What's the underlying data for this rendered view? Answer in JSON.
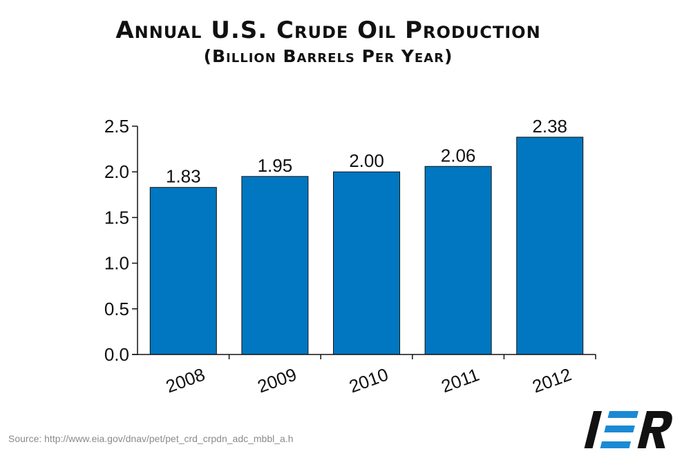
{
  "title": "Annual U.S. Crude Oil Production",
  "subtitle": "(Billion Barrels Per Year)",
  "source": "Source: http://www.eia.gov/dnav/pet/pet_crd_crpdn_adc_mbbl_a.h",
  "logo_text": "IER",
  "colors": {
    "bar": "#0077c0",
    "logo_blue": "#1a8ad4",
    "logo_dark": "#111111"
  },
  "chart_data": {
    "type": "bar",
    "title": "Annual U.S. Crude Oil Production",
    "subtitle": "(Billion Barrels Per Year)",
    "categories": [
      "2008",
      "2009",
      "2010",
      "2011",
      "2012"
    ],
    "values": [
      1.83,
      1.95,
      2.0,
      2.06,
      2.38
    ],
    "value_labels": [
      "1.83",
      "1.95",
      "2.00",
      "2.06",
      "2.38"
    ],
    "ylim": [
      0,
      2.5
    ],
    "yticks": [
      "0.0",
      "0.5",
      "1.0",
      "1.5",
      "2.0",
      "2.5"
    ],
    "grid": false,
    "legend": "none"
  }
}
